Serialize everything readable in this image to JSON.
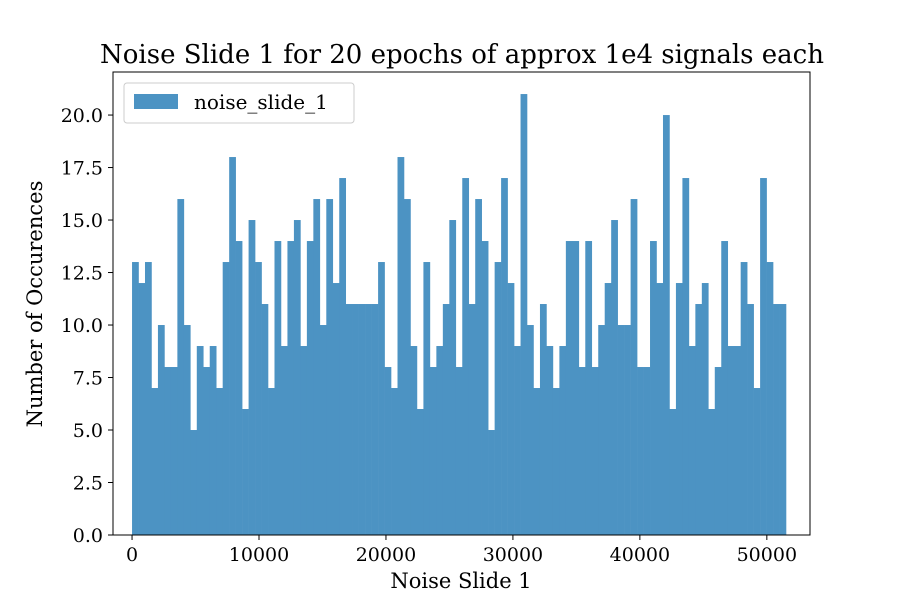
{
  "chart_data": {
    "type": "bar",
    "title": "Noise Slide 1 for 20 epochs of approx 1e4 signals each",
    "xlabel": "Noise Slide 1",
    "ylabel": "Number of Occurences",
    "xlim": [
      -1500,
      53400
    ],
    "ylim": [
      0,
      22.05
    ],
    "bin_start": 0,
    "bin_width": 510,
    "x_ticks": [
      0,
      10000,
      20000,
      30000,
      40000,
      50000
    ],
    "x_tick_labels": [
      "0",
      "10000",
      "20000",
      "30000",
      "40000",
      "50000"
    ],
    "y_ticks": [
      0,
      2.5,
      5,
      7.5,
      10,
      12.5,
      15,
      17.5,
      20
    ],
    "y_tick_labels": [
      "0.0",
      "2.5",
      "5.0",
      "7.5",
      "10.0",
      "12.5",
      "15.0",
      "17.5",
      "20.0"
    ],
    "grid": false,
    "legend_position": "top-left",
    "series": [
      {
        "name": "noise_slide_1",
        "color": "#4c93c3",
        "values": [
          13,
          12,
          13,
          7,
          10,
          8,
          8,
          16,
          10,
          5,
          9,
          8,
          9,
          7,
          13,
          18,
          14,
          6,
          15,
          13,
          11,
          7,
          14,
          9,
          14,
          15,
          9,
          14,
          16,
          10,
          16,
          12,
          17,
          11,
          11,
          11,
          11,
          11,
          13,
          8,
          7,
          18,
          16,
          9,
          6,
          13,
          8,
          9,
          11,
          15,
          8,
          17,
          11,
          16,
          14,
          5,
          13,
          17,
          12,
          9,
          21,
          10,
          7,
          11,
          9,
          7,
          9,
          14,
          14,
          8,
          14,
          8,
          10,
          12,
          15,
          10,
          10,
          16,
          8,
          8,
          14,
          12,
          20,
          6,
          12,
          17,
          9,
          11,
          12,
          6,
          8,
          14,
          9,
          9,
          13,
          11,
          7,
          17,
          13,
          11,
          11
        ]
      }
    ]
  }
}
